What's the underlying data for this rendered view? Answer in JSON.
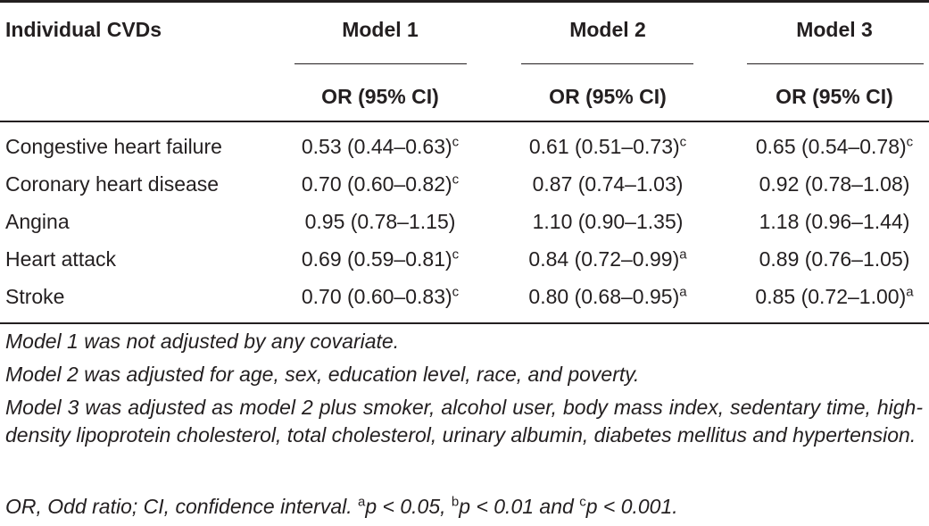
{
  "table": {
    "row_header": "Individual CVDs",
    "models": [
      {
        "name": "Model 1",
        "metric": "OR (95% CI)"
      },
      {
        "name": "Model 2",
        "metric": "OR (95% CI)"
      },
      {
        "name": "Model 3",
        "metric": "OR (95% CI)"
      }
    ],
    "rows": [
      {
        "label": "Congestive heart failure",
        "values": [
          {
            "v": "0.53 (0.44–0.63)",
            "sup": "c"
          },
          {
            "v": "0.61 (0.51–0.73)",
            "sup": "c"
          },
          {
            "v": "0.65 (0.54–0.78)",
            "sup": "c"
          }
        ]
      },
      {
        "label": "Coronary heart disease",
        "values": [
          {
            "v": "0.70 (0.60–0.82)",
            "sup": "c"
          },
          {
            "v": "0.87 (0.74–1.03)",
            "sup": ""
          },
          {
            "v": "0.92 (0.78–1.08)",
            "sup": ""
          }
        ]
      },
      {
        "label": "Angina",
        "values": [
          {
            "v": "0.95 (0.78–1.15)",
            "sup": ""
          },
          {
            "v": "1.10 (0.90–1.35)",
            "sup": ""
          },
          {
            "v": "1.18 (0.96–1.44)",
            "sup": ""
          }
        ]
      },
      {
        "label": "Heart attack",
        "values": [
          {
            "v": "0.69 (0.59–0.81)",
            "sup": "c"
          },
          {
            "v": "0.84 (0.72–0.99)",
            "sup": "a"
          },
          {
            "v": "0.89 (0.76–1.05)",
            "sup": ""
          }
        ]
      },
      {
        "label": "Stroke",
        "values": [
          {
            "v": "0.70 (0.60–0.83)",
            "sup": "c"
          },
          {
            "v": "0.80 (0.68–0.95)",
            "sup": "a"
          },
          {
            "v": "0.85 (0.72–1.00)",
            "sup": "a"
          }
        ]
      }
    ]
  },
  "footnotes": {
    "model1": "Model 1 was not adjusted by any covariate.",
    "model2": "Model 2 was adjusted for age, sex, education level, race, and poverty.",
    "model3": "Model 3 was adjusted as model 2 plus smoker, alcohol user, body mass index, sedentary time, high-density lipoprotein cholesterol, total cholesterol, urinary albumin, diabetes mellitus and hypertension.",
    "abbrev_prefix": "OR, Odd ratio; CI, confidence interval. ",
    "sig_a_mark": "a",
    "sig_a_text": "p < 0.05, ",
    "sig_b_mark": "b",
    "sig_b_text": "p < 0.01 and ",
    "sig_c_mark": "c",
    "sig_c_text": "p < 0.001."
  }
}
